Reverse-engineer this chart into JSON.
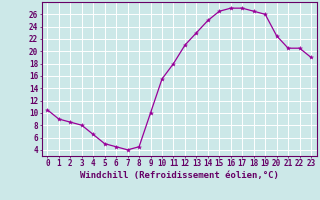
{
  "x": [
    0,
    1,
    2,
    3,
    4,
    5,
    6,
    7,
    8,
    9,
    10,
    11,
    12,
    13,
    14,
    15,
    16,
    17,
    18,
    19,
    20,
    21,
    22,
    23
  ],
  "y": [
    10.5,
    9.0,
    8.5,
    8.0,
    6.5,
    5.0,
    4.5,
    4.0,
    4.5,
    10.0,
    15.5,
    18.0,
    21.0,
    23.0,
    25.0,
    26.5,
    27.0,
    27.0,
    26.5,
    26.0,
    22.5,
    20.5,
    20.5,
    19.0
  ],
  "line_color": "#990099",
  "marker": "*",
  "marker_size": 3,
  "bg_color": "#cce8e8",
  "grid_color": "#ffffff",
  "xlabel": "Windchill (Refroidissement éolien,°C)",
  "xlim": [
    -0.5,
    23.5
  ],
  "ylim": [
    3,
    28
  ],
  "yticks": [
    4,
    6,
    8,
    10,
    12,
    14,
    16,
    18,
    20,
    22,
    24,
    26
  ],
  "xticks": [
    0,
    1,
    2,
    3,
    4,
    5,
    6,
    7,
    8,
    9,
    10,
    11,
    12,
    13,
    14,
    15,
    16,
    17,
    18,
    19,
    20,
    21,
    22,
    23
  ],
  "tick_label_size": 5.5,
  "xlabel_size": 6.5,
  "axis_color": "#660066",
  "tick_color": "#660066",
  "spine_color": "#660066"
}
